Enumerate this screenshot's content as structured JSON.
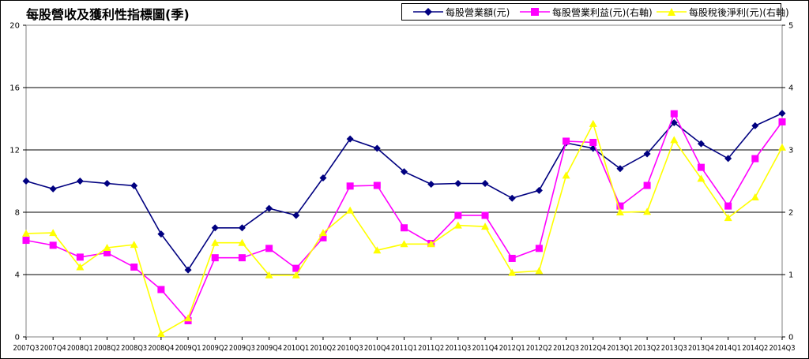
{
  "chart_data": {
    "type": "line",
    "title": "每股營收及獲利性指標圖(季)",
    "categories": [
      "2007Q3",
      "2007Q4",
      "2008Q1",
      "2008Q2",
      "2008Q3",
      "2008Q4",
      "2009Q1",
      "2009Q2",
      "2009Q3",
      "2009Q4",
      "2010Q1",
      "2010Q2",
      "2010Q3",
      "2010Q4",
      "2011Q1",
      "2011Q2",
      "2011Q3",
      "2011Q4",
      "2012Q1",
      "2012Q2",
      "2012Q3",
      "2012Q4",
      "2013Q1",
      "2013Q2",
      "2013Q3",
      "2013Q4",
      "2014Q1",
      "2014Q2",
      "2014Q3"
    ],
    "y_left": {
      "range": [
        0,
        20
      ],
      "ticks": [
        "0",
        "4",
        "8",
        "12",
        "16",
        "20"
      ]
    },
    "y_right": {
      "range": [
        0,
        5
      ],
      "ticks": [
        "0",
        "1",
        "2",
        "3",
        "4",
        "5"
      ]
    },
    "grid": true,
    "legend_position": "top-right",
    "series": [
      {
        "name": "每股營業額(元)",
        "axis": "left",
        "color": "#000080",
        "marker": "diamond",
        "values": [
          10.0,
          9.5,
          10.0,
          9.85,
          9.7,
          6.6,
          4.3,
          7.0,
          7.0,
          8.25,
          7.8,
          10.2,
          12.7,
          12.1,
          10.6,
          9.8,
          9.85,
          9.85,
          8.9,
          9.4,
          12.45,
          12.1,
          10.8,
          11.75,
          13.75,
          12.4,
          11.45,
          13.55,
          14.35
        ]
      },
      {
        "name": "每股營業利益(元)(右軸)",
        "axis": "right",
        "color": "#FF00FF",
        "marker": "square",
        "values": [
          1.55,
          1.47,
          1.28,
          1.35,
          1.12,
          0.76,
          0.26,
          1.27,
          1.27,
          1.42,
          1.1,
          1.59,
          2.42,
          2.43,
          1.75,
          1.5,
          1.95,
          1.95,
          1.26,
          1.42,
          3.14,
          3.12,
          2.1,
          2.43,
          3.58,
          2.72,
          2.1,
          2.86,
          3.45
        ]
      },
      {
        "name": "每股稅後淨利(元)(右軸)",
        "axis": "right",
        "color": "#FFFF00",
        "marker": "triangle",
        "values": [
          1.66,
          1.67,
          1.12,
          1.43,
          1.48,
          0.05,
          0.3,
          1.51,
          1.51,
          0.99,
          0.99,
          1.67,
          2.03,
          1.39,
          1.49,
          1.49,
          1.79,
          1.77,
          1.03,
          1.06,
          2.59,
          3.42,
          2.0,
          2.01,
          3.16,
          2.54,
          1.91,
          2.24,
          3.04
        ]
      }
    ]
  }
}
